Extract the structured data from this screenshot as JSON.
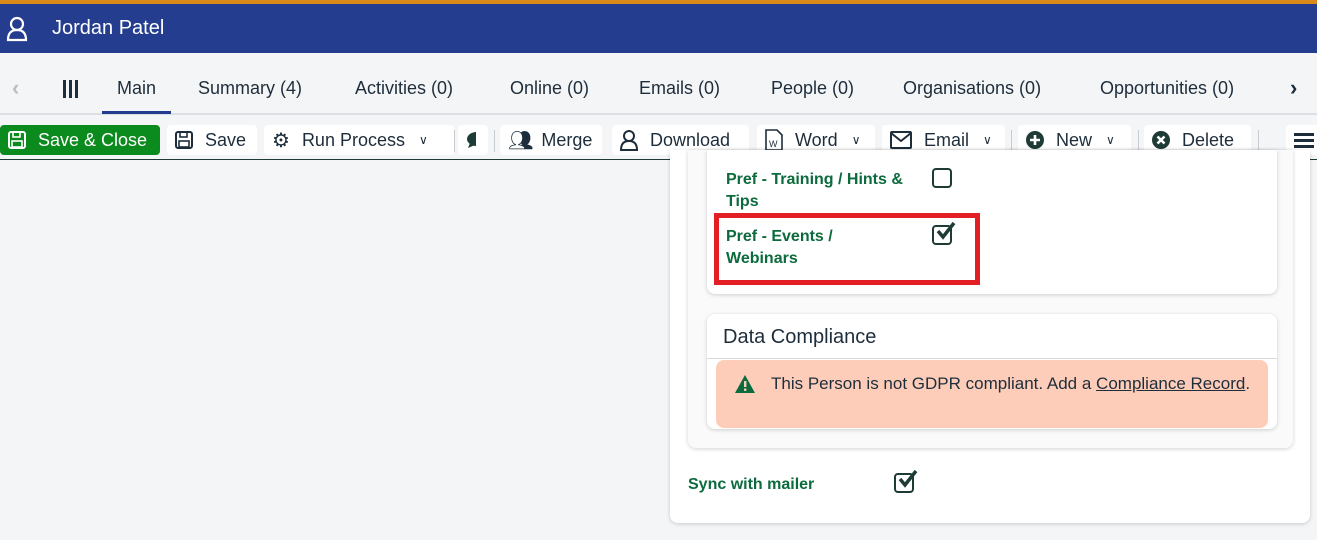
{
  "header": {
    "title": "Jordan Patel",
    "icon": "user-icon"
  },
  "tabs": [
    {
      "label": "Main",
      "active": true
    },
    {
      "label": "Summary (4)"
    },
    {
      "label": "Activities (0)"
    },
    {
      "label": "Online (0)"
    },
    {
      "label": "Emails (0)"
    },
    {
      "label": "People (0)"
    },
    {
      "label": "Organisations (0)"
    },
    {
      "label": "Opportunities (0)"
    }
  ],
  "toolbar": {
    "save_close": "Save & Close",
    "save": "Save",
    "run_process": "Run Process",
    "merge": "Merge",
    "download": "Download",
    "word": "Word",
    "email": "Email",
    "new": "New",
    "delete": "Delete"
  },
  "preferences": [
    {
      "label": "Pref - Training / Hints & Tips",
      "checked": false
    },
    {
      "label": "Pref - Events / Webinars",
      "checked": true,
      "highlighted": true
    }
  ],
  "compliance": {
    "title": "Data Compliance",
    "message": "This Person is not GDPR compliant. Add a ",
    "link": "Compliance Record",
    "suffix": "."
  },
  "sync": {
    "label": "Sync with mailer",
    "checked": true
  },
  "colors": {
    "header": "#253d8f",
    "accent_top": "#d98a1a",
    "save_close": "#0b8a1d",
    "label": "#0c6b3d",
    "alert_bg": "#fdcdb9",
    "highlight": "#e31e24"
  }
}
